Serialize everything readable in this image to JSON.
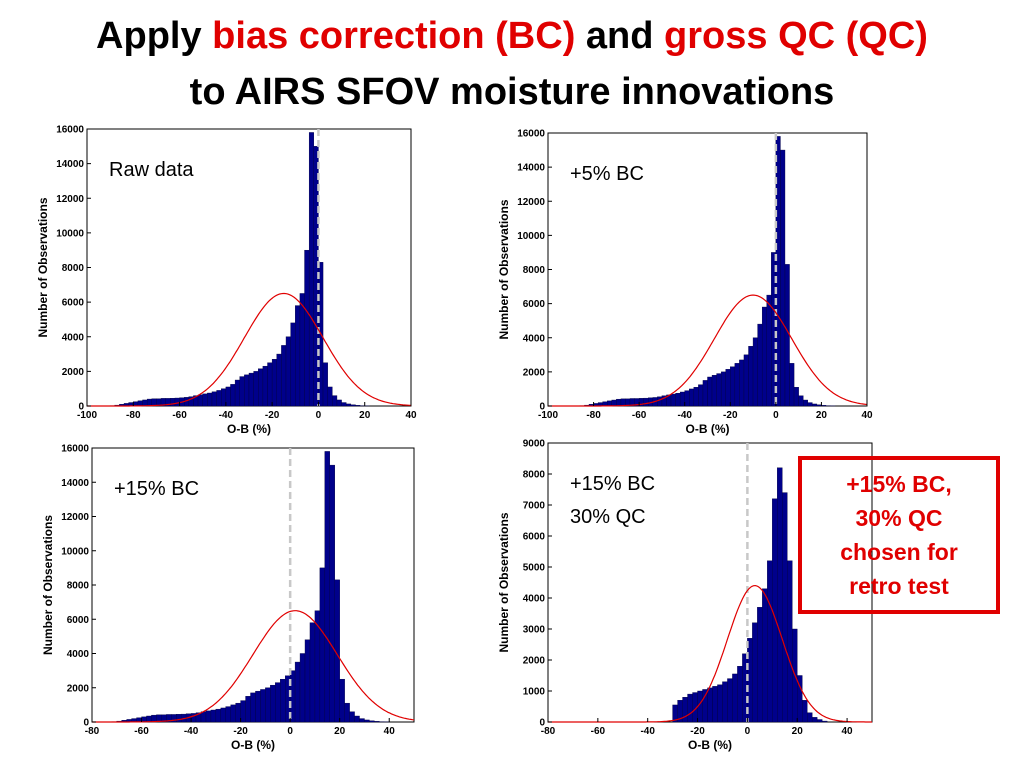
{
  "title": {
    "parts": [
      {
        "text": "Apply ",
        "highlight": false
      },
      {
        "text": "bias correction (BC)",
        "highlight": true
      },
      {
        "text": " and ",
        "highlight": false
      },
      {
        "text": "gross QC (QC)",
        "highlight": true
      }
    ],
    "line2": "to AIRS SFOV moisture innovations"
  },
  "callout": {
    "text": "+15% BC,\n30% QC\nchosen for\nretro test"
  },
  "colors": {
    "bar_fill": "#00008b",
    "bar_edge": "#000040",
    "gaussian": "#e00000",
    "zero_line": "#c8c8c8",
    "highlight": "#e00000",
    "callout_border": "#e00000"
  },
  "chart_data": [
    {
      "type": "bar",
      "annotation": [
        "Raw data"
      ],
      "xlabel": "O-B (%)",
      "ylabel": "Number of Observations",
      "xlim": [
        -100,
        40
      ],
      "ylim": [
        0,
        16000
      ],
      "xticks": [
        -100,
        -80,
        -60,
        -40,
        -20,
        0,
        20,
        40
      ],
      "yticks": [
        0,
        2000,
        4000,
        6000,
        8000,
        10000,
        12000,
        14000,
        16000
      ],
      "bin_width": 2,
      "bin_start": [
        -90,
        -88,
        -86,
        -84,
        -82,
        -80,
        -78,
        -76,
        -74,
        -72,
        -70,
        -68,
        -66,
        -64,
        -62,
        -60,
        -58,
        -56,
        -54,
        -52,
        -50,
        -48,
        -46,
        -44,
        -42,
        -40,
        -38,
        -36,
        -34,
        -32,
        -30,
        -28,
        -26,
        -24,
        -22,
        -20,
        -18,
        -16,
        -14,
        -12,
        -10,
        -8,
        -6,
        -4,
        -2,
        0,
        2,
        4,
        6,
        8,
        10,
        12,
        14,
        16,
        18,
        20
      ],
      "counts": [
        20,
        50,
        100,
        150,
        200,
        250,
        300,
        350,
        400,
        420,
        420,
        440,
        440,
        450,
        460,
        480,
        500,
        540,
        600,
        650,
        700,
        750,
        820,
        900,
        1000,
        1100,
        1250,
        1500,
        1700,
        1800,
        1900,
        2000,
        2150,
        2300,
        2500,
        2700,
        3000,
        3500,
        4000,
        4800,
        5800,
        6500,
        9000,
        15800,
        15000,
        8300,
        2500,
        1100,
        600,
        350,
        200,
        120,
        70,
        40,
        20,
        10
      ],
      "gaussian": {
        "mean": -15,
        "sigma": 17,
        "peak": 6500
      },
      "zero_line": 0
    },
    {
      "type": "bar",
      "annotation": [
        "+5% BC"
      ],
      "xlabel": "O-B (%)",
      "ylabel": "Number of Observations",
      "xlim": [
        -100,
        40
      ],
      "ylim": [
        0,
        16000
      ],
      "xticks": [
        -100,
        -80,
        -60,
        -40,
        -20,
        0,
        20,
        40
      ],
      "yticks": [
        0,
        2000,
        4000,
        6000,
        8000,
        10000,
        12000,
        14000,
        16000
      ],
      "bin_width": 2,
      "bin_start": [
        -86,
        -84,
        -82,
        -80,
        -78,
        -76,
        -74,
        -72,
        -70,
        -68,
        -66,
        -64,
        -62,
        -60,
        -58,
        -56,
        -54,
        -52,
        -50,
        -48,
        -46,
        -44,
        -42,
        -40,
        -38,
        -36,
        -34,
        -32,
        -30,
        -28,
        -26,
        -24,
        -22,
        -20,
        -18,
        -16,
        -14,
        -12,
        -10,
        -8,
        -6,
        -4,
        -2,
        0,
        2,
        4,
        6,
        8,
        10,
        12,
        14,
        16,
        18,
        20,
        22,
        24
      ],
      "counts": [
        20,
        50,
        100,
        150,
        200,
        250,
        300,
        350,
        400,
        420,
        420,
        440,
        440,
        450,
        460,
        480,
        500,
        540,
        600,
        650,
        700,
        750,
        820,
        900,
        1000,
        1100,
        1250,
        1500,
        1700,
        1800,
        1900,
        2000,
        2150,
        2300,
        2500,
        2700,
        3000,
        3500,
        4000,
        4800,
        5800,
        6500,
        9000,
        15800,
        15000,
        8300,
        2500,
        1100,
        600,
        350,
        200,
        120,
        70,
        40,
        20,
        10
      ],
      "gaussian": {
        "mean": -10,
        "sigma": 17,
        "peak": 6500
      },
      "zero_line": 0
    },
    {
      "type": "bar",
      "annotation": [
        "+15% BC"
      ],
      "xlabel": "O-B (%)",
      "ylabel": "Number of Observations",
      "xlim": [
        -80,
        50
      ],
      "ylim": [
        0,
        16000
      ],
      "xticks": [
        -80,
        -60,
        -40,
        -20,
        0,
        20,
        40
      ],
      "yticks": [
        0,
        2000,
        4000,
        6000,
        8000,
        10000,
        12000,
        14000,
        16000
      ],
      "bin_width": 2,
      "bin_start": [
        -72,
        -70,
        -68,
        -66,
        -64,
        -62,
        -60,
        -58,
        -56,
        -54,
        -52,
        -50,
        -48,
        -46,
        -44,
        -42,
        -40,
        -38,
        -36,
        -34,
        -32,
        -30,
        -28,
        -26,
        -24,
        -22,
        -20,
        -18,
        -16,
        -14,
        -12,
        -10,
        -8,
        -6,
        -4,
        -2,
        0,
        2,
        4,
        6,
        8,
        10,
        12,
        14,
        16,
        18,
        20,
        22,
        24,
        26,
        28,
        30,
        32,
        34,
        36,
        38
      ],
      "counts": [
        20,
        50,
        100,
        150,
        200,
        250,
        300,
        350,
        400,
        420,
        420,
        440,
        440,
        450,
        460,
        480,
        500,
        540,
        600,
        650,
        700,
        750,
        820,
        900,
        1000,
        1100,
        1250,
        1500,
        1700,
        1800,
        1900,
        2000,
        2150,
        2300,
        2500,
        2700,
        3000,
        3500,
        4000,
        4800,
        5800,
        6500,
        9000,
        15800,
        15000,
        8300,
        2500,
        1100,
        600,
        350,
        200,
        120,
        70,
        40,
        20,
        10
      ],
      "gaussian": {
        "mean": 2,
        "sigma": 17,
        "peak": 6500
      },
      "zero_line": 0
    },
    {
      "type": "bar",
      "annotation": [
        "+15% BC",
        "30% QC"
      ],
      "xlabel": "O-B (%)",
      "ylabel": "Number of Observations",
      "xlim": [
        -80,
        50
      ],
      "ylim": [
        0,
        9000
      ],
      "xticks": [
        -80,
        -60,
        -40,
        -20,
        0,
        20,
        40
      ],
      "yticks": [
        0,
        1000,
        2000,
        3000,
        4000,
        5000,
        6000,
        7000,
        8000,
        9000
      ],
      "bin_width": 2,
      "bin_start": [
        -30,
        -28,
        -26,
        -24,
        -22,
        -20,
        -18,
        -16,
        -14,
        -12,
        -10,
        -8,
        -6,
        -4,
        -2,
        0,
        2,
        4,
        6,
        8,
        10,
        12,
        14,
        16,
        18,
        20,
        22,
        24,
        26,
        28,
        30
      ],
      "counts": [
        550,
        700,
        800,
        900,
        950,
        1000,
        1050,
        1100,
        1150,
        1200,
        1300,
        1400,
        1550,
        1800,
        2200,
        2700,
        3200,
        3700,
        4300,
        5200,
        7200,
        8200,
        7400,
        5200,
        3000,
        1500,
        700,
        300,
        150,
        80,
        30
      ],
      "gaussian": {
        "mean": 3,
        "sigma": 11,
        "peak": 4400
      },
      "zero_line": 0
    }
  ]
}
